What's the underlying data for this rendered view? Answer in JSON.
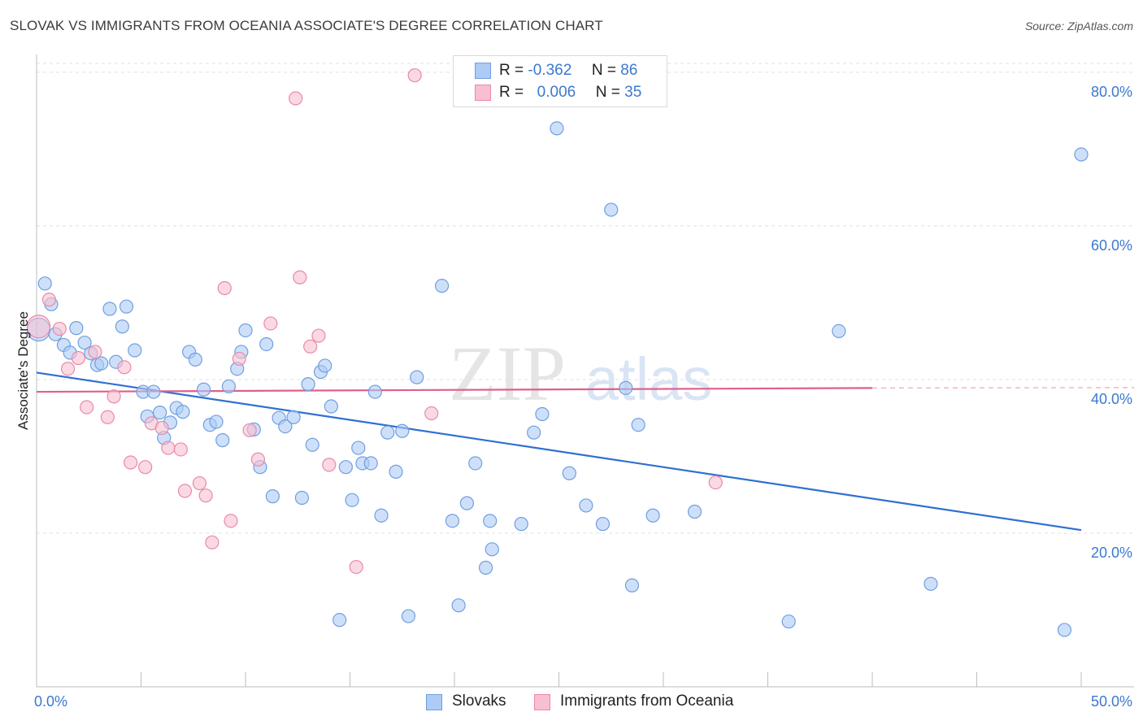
{
  "title": "SLOVAK VS IMMIGRANTS FROM OCEANIA ASSOCIATE'S DEGREE CORRELATION CHART",
  "source": "Source: ZipAtlas.com",
  "watermark": {
    "zip": "ZIP",
    "atlas": "atlas"
  },
  "legend_stats": [
    {
      "r_label": "R =",
      "r_value": "-0.362",
      "n_label": "N =",
      "n_value": "86"
    },
    {
      "r_label": "R =",
      "r_value": "0.006",
      "n_label": "N =",
      "n_value": "35"
    }
  ],
  "colors": {
    "slovaks_fill": "#aecbf5",
    "slovaks_stroke": "#6f9fe0",
    "slovaks_line": "#2f70d2",
    "oceania_fill": "#f7bfd0",
    "oceania_stroke": "#e98aa8",
    "oceania_line": "#e0608a",
    "axis_text": "#3b78d0",
    "grid": "#e0e0e0"
  },
  "chart_data": {
    "type": "scatter",
    "title": "SLOVAK VS IMMIGRANTS FROM OCEANIA ASSOCIATE'S DEGREE CORRELATION CHART",
    "xlabel": "",
    "ylabel": "Associate's Degree",
    "xlim": [
      0,
      50
    ],
    "ylim": [
      0,
      82
    ],
    "x_tick_labels": [
      "0.0%",
      "50.0%"
    ],
    "y_ticks": [
      20,
      40,
      60,
      80
    ],
    "y_tick_labels": [
      "20.0%",
      "40.0%",
      "60.0%",
      "80.0%"
    ],
    "grid": true,
    "legend_position": "bottom",
    "series": [
      {
        "name": "Slovaks",
        "trend": {
          "x": [
            0,
            50
          ],
          "y": [
            40.9,
            20.4
          ]
        },
        "points": [
          [
            0.1,
            46.5
          ],
          [
            0.4,
            52.5
          ],
          [
            0.7,
            49.8
          ],
          [
            0.9,
            45.9
          ],
          [
            1.3,
            44.5
          ],
          [
            1.6,
            43.5
          ],
          [
            1.9,
            46.7
          ],
          [
            2.3,
            44.8
          ],
          [
            2.6,
            43.4
          ],
          [
            2.9,
            41.9
          ],
          [
            3.1,
            42.1
          ],
          [
            3.5,
            49.2
          ],
          [
            3.8,
            42.3
          ],
          [
            4.1,
            46.9
          ],
          [
            4.3,
            49.5
          ],
          [
            4.7,
            43.8
          ],
          [
            5.1,
            38.4
          ],
          [
            5.3,
            35.2
          ],
          [
            5.6,
            38.4
          ],
          [
            5.9,
            35.7
          ],
          [
            6.1,
            32.4
          ],
          [
            6.4,
            34.4
          ],
          [
            6.7,
            36.3
          ],
          [
            7.0,
            35.8
          ],
          [
            7.3,
            43.6
          ],
          [
            7.6,
            42.6
          ],
          [
            8.0,
            38.7
          ],
          [
            8.3,
            34.1
          ],
          [
            8.6,
            34.5
          ],
          [
            8.9,
            32.1
          ],
          [
            9.2,
            39.1
          ],
          [
            9.6,
            41.4
          ],
          [
            9.8,
            43.6
          ],
          [
            10.0,
            46.4
          ],
          [
            10.4,
            33.5
          ],
          [
            10.7,
            28.6
          ],
          [
            11.0,
            44.6
          ],
          [
            11.3,
            24.8
          ],
          [
            11.6,
            35.0
          ],
          [
            11.9,
            33.9
          ],
          [
            12.3,
            35.1
          ],
          [
            12.7,
            24.6
          ],
          [
            13.0,
            39.4
          ],
          [
            13.2,
            31.5
          ],
          [
            13.6,
            41.0
          ],
          [
            13.8,
            41.8
          ],
          [
            14.1,
            36.5
          ],
          [
            14.5,
            8.7
          ],
          [
            14.8,
            28.6
          ],
          [
            15.1,
            24.3
          ],
          [
            15.4,
            31.1
          ],
          [
            15.6,
            29.1
          ],
          [
            16.0,
            29.1
          ],
          [
            16.2,
            38.4
          ],
          [
            16.5,
            22.3
          ],
          [
            16.8,
            33.1
          ],
          [
            17.2,
            28.0
          ],
          [
            17.5,
            33.3
          ],
          [
            17.8,
            9.2
          ],
          [
            18.2,
            40.3
          ],
          [
            19.4,
            52.2
          ],
          [
            19.9,
            21.6
          ],
          [
            20.2,
            10.6
          ],
          [
            20.6,
            23.9
          ],
          [
            21.0,
            29.1
          ],
          [
            21.5,
            15.5
          ],
          [
            21.7,
            21.6
          ],
          [
            21.8,
            17.9
          ],
          [
            23.2,
            21.2
          ],
          [
            23.8,
            33.1
          ],
          [
            24.2,
            35.5
          ],
          [
            24.9,
            72.7
          ],
          [
            25.5,
            27.8
          ],
          [
            26.3,
            23.6
          ],
          [
            27.1,
            21.2
          ],
          [
            27.5,
            62.1
          ],
          [
            28.2,
            38.9
          ],
          [
            28.5,
            13.2
          ],
          [
            28.8,
            34.1
          ],
          [
            29.5,
            22.3
          ],
          [
            31.5,
            22.8
          ],
          [
            36.0,
            8.5
          ],
          [
            38.4,
            46.3
          ],
          [
            42.8,
            13.4
          ],
          [
            49.2,
            7.4
          ],
          [
            50.0,
            69.3
          ]
        ]
      },
      {
        "name": "Immigrants from Oceania",
        "trend": {
          "x": [
            0,
            40
          ],
          "y": [
            38.4,
            38.9
          ]
        },
        "points": [
          [
            0.1,
            46.9
          ],
          [
            0.6,
            50.4
          ],
          [
            1.1,
            46.6
          ],
          [
            1.5,
            41.4
          ],
          [
            2.0,
            42.8
          ],
          [
            2.4,
            36.4
          ],
          [
            2.8,
            43.6
          ],
          [
            3.4,
            35.1
          ],
          [
            3.7,
            37.8
          ],
          [
            4.2,
            41.6
          ],
          [
            4.5,
            29.2
          ],
          [
            5.2,
            28.6
          ],
          [
            5.5,
            34.3
          ],
          [
            6.0,
            33.7
          ],
          [
            6.3,
            31.1
          ],
          [
            6.9,
            30.9
          ],
          [
            7.1,
            25.5
          ],
          [
            7.8,
            26.5
          ],
          [
            8.1,
            24.9
          ],
          [
            8.4,
            18.8
          ],
          [
            9.0,
            51.9
          ],
          [
            9.3,
            21.6
          ],
          [
            9.7,
            42.7
          ],
          [
            10.2,
            33.4
          ],
          [
            10.6,
            29.6
          ],
          [
            11.2,
            47.3
          ],
          [
            12.4,
            76.6
          ],
          [
            12.6,
            53.3
          ],
          [
            13.1,
            44.3
          ],
          [
            13.5,
            45.7
          ],
          [
            14.0,
            28.9
          ],
          [
            15.3,
            15.6
          ],
          [
            18.1,
            79.6
          ],
          [
            18.9,
            35.6
          ],
          [
            32.5,
            26.6
          ]
        ]
      }
    ]
  }
}
